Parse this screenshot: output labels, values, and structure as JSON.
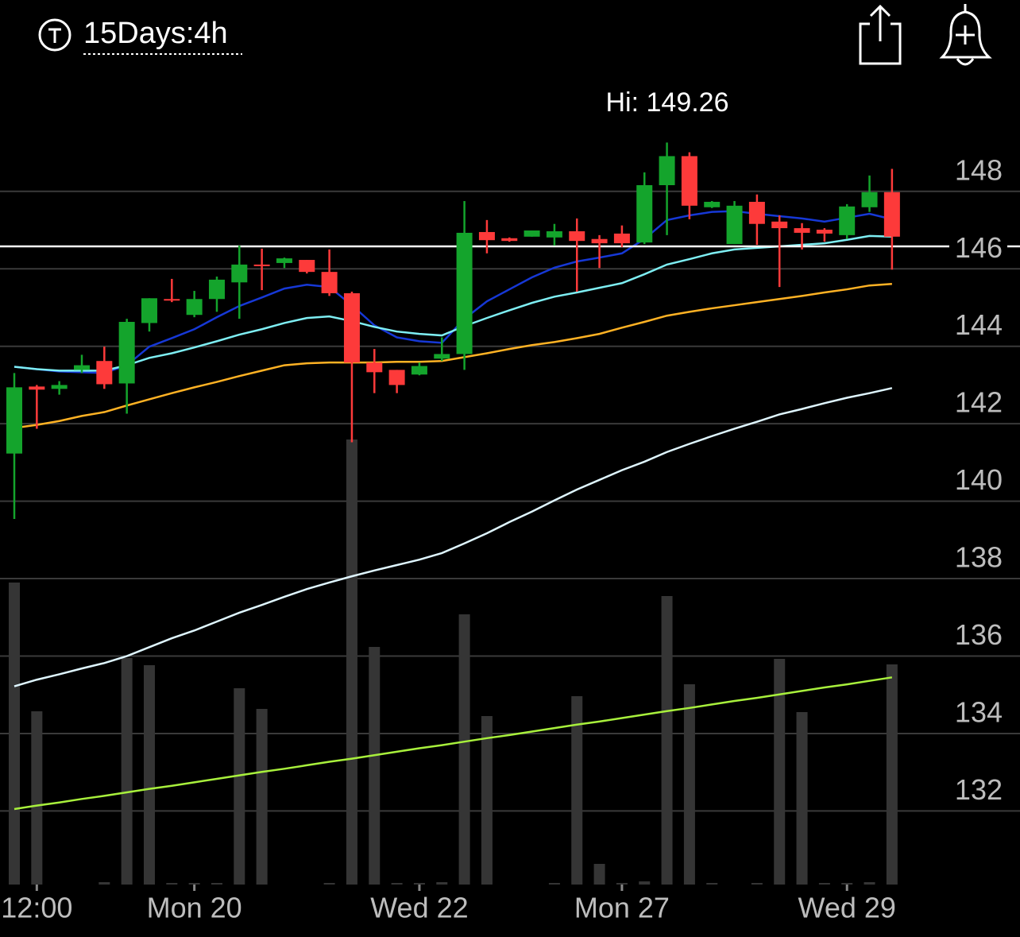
{
  "header": {
    "title": "15Days:4h"
  },
  "chart_data": {
    "type": "candlestick",
    "annotation": "Hi: 149.26",
    "categories": [
      null,
      "12:00",
      null,
      null,
      null,
      null,
      null,
      null,
      "Mon 20",
      null,
      null,
      null,
      null,
      null,
      null,
      null,
      null,
      null,
      "Wed 22",
      null,
      null,
      null,
      null,
      null,
      null,
      null,
      null,
      "Mon 27",
      null,
      null,
      null,
      null,
      null,
      null,
      null,
      null,
      null,
      "Wed 29",
      null,
      null
    ],
    "open": [
      141.23,
      142.96,
      142.9,
      143.39,
      143.62,
      143.04,
      144.6,
      145.22,
      144.81,
      145.22,
      145.65,
      146.11,
      146.15,
      146.23,
      145.92,
      145.37,
      143.58,
      143.39,
      143.27,
      143.68,
      143.8,
      146.95,
      146.79,
      146.83,
      146.81,
      146.97,
      146.77,
      146.91,
      146.68,
      148.16,
      148.91,
      147.59,
      146.64,
      147.73,
      147.22,
      147.05,
      147.01,
      146.87,
      147.59,
      147.98
    ],
    "high": [
      143.31,
      143.0,
      143.1,
      143.78,
      143.99,
      144.71,
      145.24,
      145.74,
      145.43,
      145.8,
      146.6,
      146.52,
      146.29,
      146.23,
      146.5,
      145.41,
      143.93,
      143.39,
      143.58,
      144.23,
      147.75,
      147.26,
      146.81,
      146.99,
      147.16,
      147.3,
      146.87,
      147.12,
      148.49,
      149.26,
      149.01,
      147.75,
      147.75,
      147.92,
      147.38,
      147.18,
      147.05,
      147.67,
      148.41,
      148.58
    ],
    "low": [
      139.54,
      141.87,
      142.75,
      143.31,
      142.9,
      142.26,
      144.38,
      145.14,
      144.75,
      144.89,
      144.71,
      145.45,
      146.02,
      145.88,
      145.3,
      141.52,
      142.79,
      142.79,
      143.25,
      143.62,
      143.39,
      146.4,
      146.7,
      146.83,
      146.6,
      145.41,
      146.02,
      146.56,
      146.64,
      146.87,
      147.28,
      147.57,
      146.64,
      146.62,
      145.53,
      146.5,
      146.7,
      146.77,
      147.47,
      145.98
    ],
    "close": [
      142.94,
      142.88,
      143.0,
      143.51,
      143.02,
      144.63,
      145.24,
      145.18,
      145.22,
      145.72,
      146.11,
      146.07,
      146.27,
      145.92,
      145.37,
      143.58,
      143.33,
      143.0,
      143.49,
      143.8,
      146.93,
      146.74,
      146.72,
      146.99,
      146.97,
      146.72,
      146.66,
      146.66,
      148.16,
      148.91,
      147.63,
      147.73,
      147.63,
      147.16,
      147.05,
      146.93,
      146.91,
      147.61,
      147.98,
      146.83
    ],
    "up_color": "#14a42c",
    "down_color": "#fd3a3a",
    "lines": [
      {
        "color": "#1638d6",
        "values": [
          143.47,
          143.41,
          143.35,
          143.33,
          143.31,
          143.51,
          143.99,
          144.21,
          144.44,
          144.75,
          145.04,
          145.26,
          145.49,
          145.59,
          145.53,
          145.06,
          144.54,
          144.23,
          144.13,
          144.09,
          144.71,
          145.16,
          145.47,
          145.78,
          146.03,
          146.19,
          146.29,
          146.4,
          146.77,
          147.26,
          147.38,
          147.47,
          147.49,
          147.42,
          147.36,
          147.3,
          147.22,
          147.32,
          147.42,
          147.28
        ]
      },
      {
        "color": "#7eeef3",
        "values": [
          143.47,
          143.41,
          143.37,
          143.37,
          143.37,
          143.51,
          143.7,
          143.82,
          143.97,
          144.13,
          144.3,
          144.44,
          144.6,
          144.73,
          144.77,
          144.65,
          144.5,
          144.38,
          144.32,
          144.28,
          144.52,
          144.73,
          144.93,
          145.12,
          145.28,
          145.39,
          145.51,
          145.63,
          145.86,
          146.11,
          146.25,
          146.4,
          146.5,
          146.54,
          146.58,
          146.62,
          146.66,
          146.75,
          146.85,
          146.83
        ]
      },
      {
        "color": "#ffb224",
        "values": [
          141.89,
          141.97,
          142.07,
          142.2,
          142.3,
          142.47,
          142.63,
          142.79,
          142.94,
          143.08,
          143.23,
          143.37,
          143.51,
          143.56,
          143.58,
          143.58,
          143.58,
          143.6,
          143.6,
          143.62,
          143.72,
          143.82,
          143.93,
          144.03,
          144.11,
          144.21,
          144.32,
          144.48,
          144.63,
          144.79,
          144.89,
          144.98,
          145.06,
          145.14,
          145.22,
          145.3,
          145.39,
          145.47,
          145.57,
          145.61
        ]
      },
      {
        "color": "#dff6ff",
        "values": [
          135.22,
          135.39,
          135.53,
          135.68,
          135.82,
          136.0,
          136.23,
          136.46,
          136.66,
          136.89,
          137.12,
          137.32,
          137.53,
          137.73,
          137.9,
          138.06,
          138.21,
          138.35,
          138.49,
          138.66,
          138.91,
          139.17,
          139.46,
          139.73,
          140.02,
          140.3,
          140.55,
          140.8,
          141.02,
          141.27,
          141.48,
          141.68,
          141.87,
          142.05,
          142.24,
          142.38,
          142.53,
          142.67,
          142.79,
          142.92
        ]
      },
      {
        "color": "#a8f03c",
        "values": [
          132.05,
          132.14,
          132.22,
          132.31,
          132.39,
          132.48,
          132.57,
          132.65,
          132.74,
          132.83,
          132.92,
          133.01,
          133.09,
          133.18,
          133.27,
          133.35,
          133.44,
          133.53,
          133.62,
          133.7,
          133.79,
          133.88,
          133.96,
          134.05,
          134.14,
          134.23,
          134.31,
          134.4,
          134.49,
          134.58,
          134.66,
          134.75,
          134.84,
          134.92,
          135.01,
          135.1,
          135.19,
          135.27,
          135.36,
          135.45
        ]
      }
    ],
    "volume": {
      "color": "#353535",
      "lim": [
        0,
        600
      ],
      "values": [
        380,
        218,
        0,
        0,
        3,
        285,
        276,
        2,
        2,
        2,
        247,
        221,
        0,
        0,
        2,
        560,
        299,
        2,
        2,
        3,
        340,
        212,
        0,
        0,
        2,
        237,
        26,
        2,
        4,
        363,
        252,
        2,
        0,
        2,
        284,
        217,
        2,
        2,
        3,
        277
      ]
    },
    "price_line": 146.58,
    "ylim": [
      130.1,
      151.3
    ],
    "yticks": [
      132,
      134,
      136,
      138,
      140,
      142,
      144,
      146,
      148
    ],
    "grid": true
  }
}
